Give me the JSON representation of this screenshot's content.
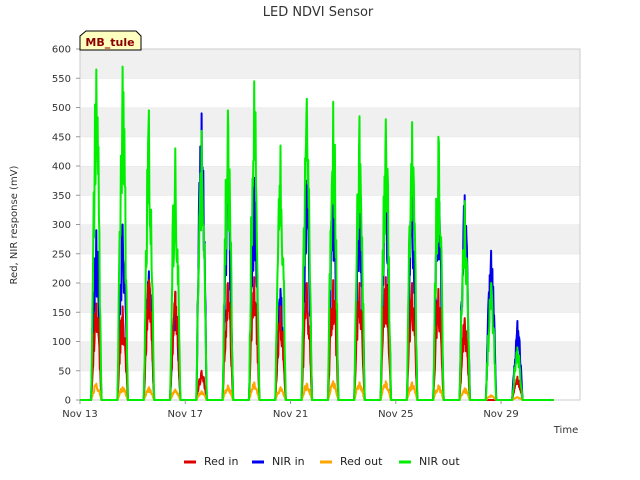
{
  "chart_data": {
    "type": "line",
    "title": "LED NDVI Sensor",
    "xlabel": "Time",
    "ylabel": "Red, NIR response (mV)",
    "site_label": "MB_tule",
    "ylim": [
      0,
      600
    ],
    "yticks": [
      0,
      50,
      100,
      150,
      200,
      250,
      300,
      350,
      400,
      450,
      500,
      550,
      600
    ],
    "xlim": [
      "2023-11-13",
      "2023-12-02"
    ],
    "xticks": [
      {
        "date": "2023-11-13",
        "label": "Nov 13"
      },
      {
        "date": "2023-11-17",
        "label": "Nov 17"
      },
      {
        "date": "2023-11-21",
        "label": "Nov 21"
      },
      {
        "date": "2023-11-25",
        "label": "Nov 25"
      },
      {
        "date": "2023-11-29",
        "label": "Nov 29"
      }
    ],
    "grid": "horizontal bands",
    "legend_position": "bottom",
    "day_peak_dates": [
      "2023-11-13",
      "2023-11-14",
      "2023-11-15",
      "2023-11-16",
      "2023-11-17",
      "2023-11-18",
      "2023-11-19",
      "2023-11-20",
      "2023-11-21",
      "2023-11-22",
      "2023-11-23",
      "2023-11-24",
      "2023-11-25",
      "2023-11-26",
      "2023-11-27",
      "2023-11-28",
      "2023-11-29",
      "2023-11-30"
    ],
    "series": [
      {
        "name": "Red in",
        "color": "#dd0000",
        "daily_peak": [
          165,
          160,
          205,
          185,
          50,
          200,
          210,
          160,
          200,
          205,
          200,
          210,
          200,
          190,
          140,
          0,
          40,
          0
        ]
      },
      {
        "name": "NIR in",
        "color": "#0000ee",
        "daily_peak": [
          290,
          300,
          220,
          185,
          490,
          390,
          380,
          190,
          375,
          385,
          380,
          385,
          375,
          365,
          350,
          255,
          135,
          0
        ]
      },
      {
        "name": "Red out",
        "color": "#ffa500",
        "daily_peak": [
          28,
          22,
          22,
          18,
          15,
          25,
          30,
          22,
          28,
          32,
          30,
          32,
          30,
          25,
          20,
          8,
          5,
          0
        ]
      },
      {
        "name": "NIR out",
        "color": "#00ee00",
        "daily_peak": [
          565,
          570,
          495,
          430,
          460,
          495,
          545,
          435,
          515,
          510,
          485,
          480,
          475,
          450,
          340,
          200,
          90,
          0
        ]
      }
    ]
  }
}
